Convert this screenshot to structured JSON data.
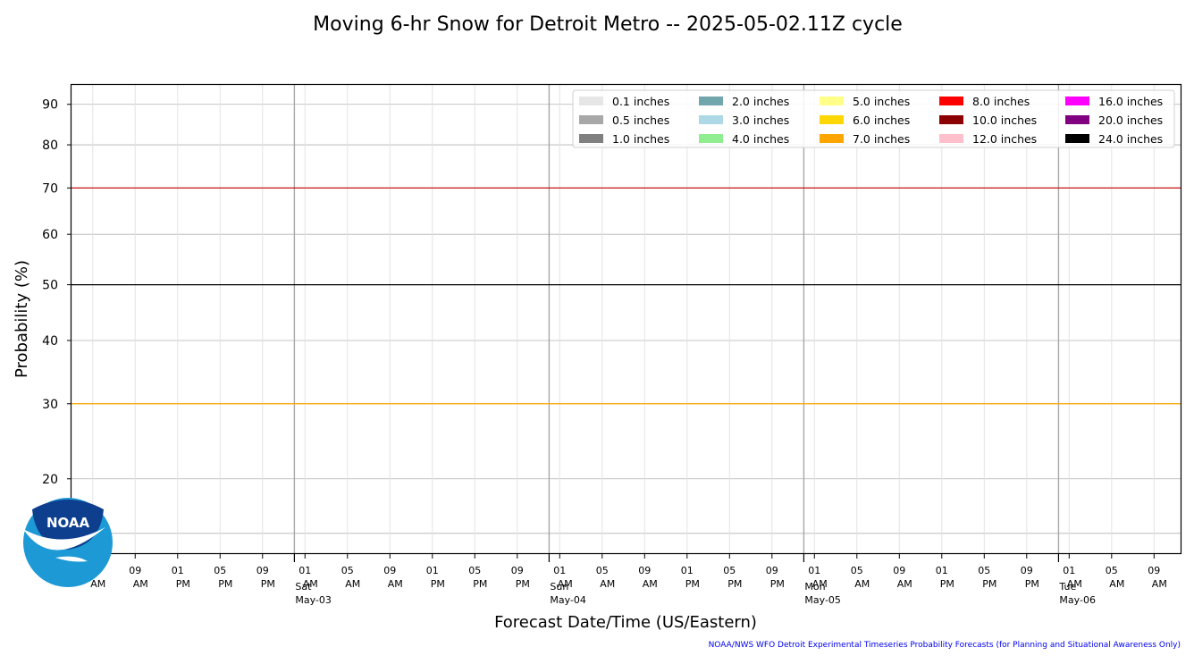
{
  "chart_data": {
    "type": "line",
    "title": "Moving 6-hr Snow for Detroit Metro -- 2025-05-02.11Z cycle",
    "xlabel": "Forecast Date/Time (US/Eastern)",
    "ylabel": "Probability (%)",
    "y_scale": "sqrt",
    "y_ticks": [
      20,
      30,
      40,
      50,
      60,
      70,
      80,
      90
    ],
    "ylim": [
      12,
      95
    ],
    "x_start": "2025-05-02 03:00",
    "x_end": "2025-05-06 11:30",
    "x_ticks": [
      {
        "t": "2025-05-02 05:00",
        "hour": "05",
        "ampm": "AM"
      },
      {
        "t": "2025-05-02 09:00",
        "hour": "09",
        "ampm": "AM"
      },
      {
        "t": "2025-05-02 13:00",
        "hour": "01",
        "ampm": "PM"
      },
      {
        "t": "2025-05-02 17:00",
        "hour": "05",
        "ampm": "PM"
      },
      {
        "t": "2025-05-02 21:00",
        "hour": "09",
        "ampm": "PM"
      },
      {
        "t": "2025-05-03 01:00",
        "hour": "01",
        "ampm": "AM"
      },
      {
        "t": "2025-05-03 05:00",
        "hour": "05",
        "ampm": "AM"
      },
      {
        "t": "2025-05-03 09:00",
        "hour": "09",
        "ampm": "AM"
      },
      {
        "t": "2025-05-03 13:00",
        "hour": "01",
        "ampm": "PM"
      },
      {
        "t": "2025-05-03 17:00",
        "hour": "05",
        "ampm": "PM"
      },
      {
        "t": "2025-05-03 21:00",
        "hour": "09",
        "ampm": "PM"
      },
      {
        "t": "2025-05-04 01:00",
        "hour": "01",
        "ampm": "AM"
      },
      {
        "t": "2025-05-04 05:00",
        "hour": "05",
        "ampm": "AM"
      },
      {
        "t": "2025-05-04 09:00",
        "hour": "09",
        "ampm": "AM"
      },
      {
        "t": "2025-05-04 13:00",
        "hour": "01",
        "ampm": "PM"
      },
      {
        "t": "2025-05-04 17:00",
        "hour": "05",
        "ampm": "PM"
      },
      {
        "t": "2025-05-04 21:00",
        "hour": "09",
        "ampm": "PM"
      },
      {
        "t": "2025-05-05 01:00",
        "hour": "01",
        "ampm": "AM"
      },
      {
        "t": "2025-05-05 05:00",
        "hour": "05",
        "ampm": "AM"
      },
      {
        "t": "2025-05-05 09:00",
        "hour": "09",
        "ampm": "AM"
      },
      {
        "t": "2025-05-05 13:00",
        "hour": "01",
        "ampm": "PM"
      },
      {
        "t": "2025-05-05 17:00",
        "hour": "05",
        "ampm": "PM"
      },
      {
        "t": "2025-05-05 21:00",
        "hour": "09",
        "ampm": "PM"
      },
      {
        "t": "2025-05-06 01:00",
        "hour": "01",
        "ampm": "AM"
      },
      {
        "t": "2025-05-06 05:00",
        "hour": "05",
        "ampm": "AM"
      },
      {
        "t": "2025-05-06 09:00",
        "hour": "09",
        "ampm": "AM"
      }
    ],
    "day_markers": [
      {
        "t": "2025-05-03 00:00",
        "day": "Sat",
        "date": "May-03"
      },
      {
        "t": "2025-05-04 00:00",
        "day": "Sun",
        "date": "May-04"
      },
      {
        "t": "2025-05-05 00:00",
        "day": "Mon",
        "date": "May-05"
      },
      {
        "t": "2025-05-06 00:00",
        "day": "Tue",
        "date": "May-06"
      }
    ],
    "reference_lines": [
      {
        "y": 70,
        "color": "#cc0000"
      },
      {
        "y": 50,
        "color": "#000000"
      },
      {
        "y": 30,
        "color": "#ffa500"
      }
    ],
    "legend_placement": "top-right",
    "grid": true,
    "series": [
      {
        "name": "0.1 inches",
        "color": "#e6e6e6",
        "values": []
      },
      {
        "name": "0.5 inches",
        "color": "#a8a8a8",
        "values": []
      },
      {
        "name": "1.0 inches",
        "color": "#808080",
        "values": []
      },
      {
        "name": "2.0 inches",
        "color": "#72a6ad",
        "values": []
      },
      {
        "name": "3.0 inches",
        "color": "#add8e6",
        "values": []
      },
      {
        "name": "4.0 inches",
        "color": "#90ee90",
        "values": []
      },
      {
        "name": "5.0 inches",
        "color": "#ffff88",
        "values": []
      },
      {
        "name": "6.0 inches",
        "color": "#ffd700",
        "values": []
      },
      {
        "name": "7.0 inches",
        "color": "#ffa500",
        "values": []
      },
      {
        "name": "8.0 inches",
        "color": "#ff0000",
        "values": []
      },
      {
        "name": "10.0 inches",
        "color": "#8b0000",
        "values": []
      },
      {
        "name": "12.0 inches",
        "color": "#ffc0cb",
        "values": []
      },
      {
        "name": "16.0 inches",
        "color": "#ff00ff",
        "values": []
      },
      {
        "name": "20.0 inches",
        "color": "#800080",
        "values": []
      },
      {
        "name": "24.0 inches",
        "color": "#000000",
        "values": []
      }
    ]
  },
  "logo": {
    "text": "NOAA"
  },
  "footer": "NOAA/NWS WFO Detroit Experimental Timeseries Probability Forecasts (for Planning and Situational Awareness Only)"
}
